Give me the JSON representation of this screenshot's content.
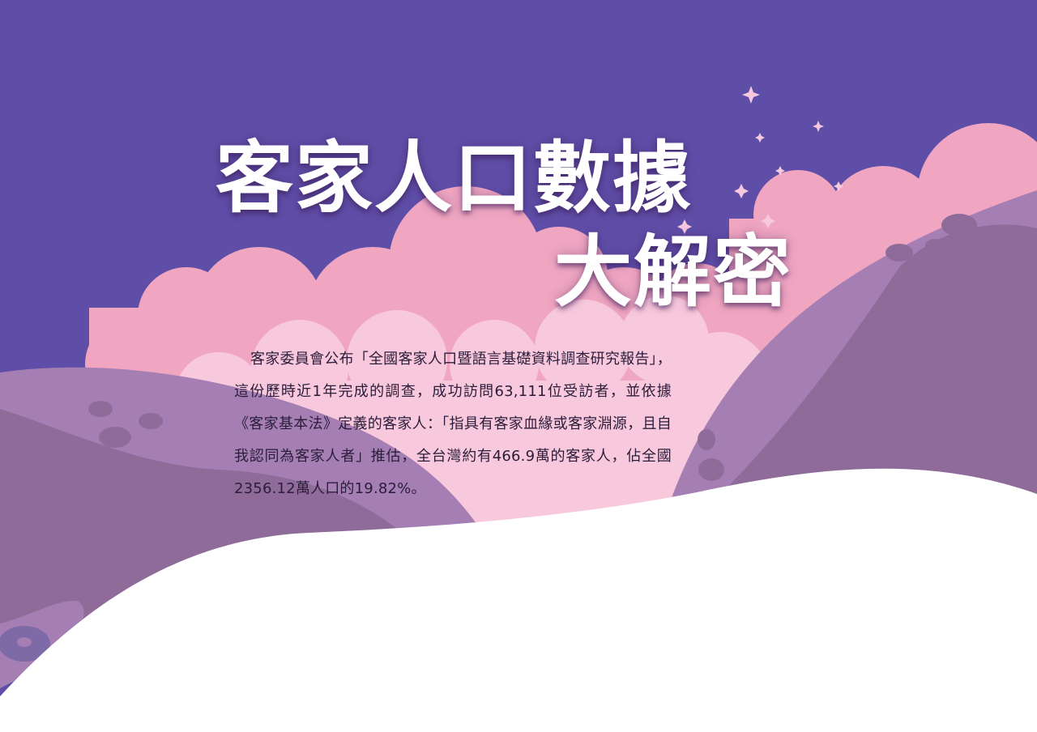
{
  "hero": {
    "title_line_1": "客家人口數據",
    "title_line_2": "大解密",
    "intro": "客家委員會公布「全國客家人口暨語言基礎資料調查研究報告」，這份歷時近1年完成的調查，成功訪問63,111位受訪者，並依據《客家基本法》定義的客家人：「指具有客家血緣或客家淵源，且自我認同為客家人者」推估，全台灣約有466.9萬的客家人，佔全國2356.12萬人口的19.82%。"
  },
  "colors": {
    "sky": "#5f4ea8",
    "cloud_pink": "#f0a6c1",
    "cloud_light_pink": "#f8c8dc",
    "hill_lavender": "#a57fb4",
    "hill_mauve": "#8f6b9a",
    "sparkle": "#f7c9df",
    "title_text": "#ffffff",
    "body_text": "#2b1d3a",
    "wave": "#ffffff"
  }
}
